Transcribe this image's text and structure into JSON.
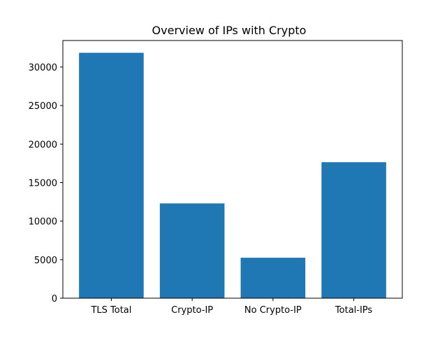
{
  "chart_data": {
    "type": "bar",
    "title": "Overview of IPs with Crypto",
    "xlabel": "",
    "ylabel": "",
    "categories": [
      "TLS Total",
      "Crypto-IP",
      "No Crypto-IP",
      "Total-IPs"
    ],
    "values": [
      31850,
      12300,
      5250,
      17650
    ],
    "ylim": [
      0,
      33442
    ],
    "yticks": [
      0,
      5000,
      10000,
      15000,
      20000,
      25000,
      30000
    ],
    "grid": false,
    "legend": "none",
    "bar_color": "#1f77b4"
  }
}
